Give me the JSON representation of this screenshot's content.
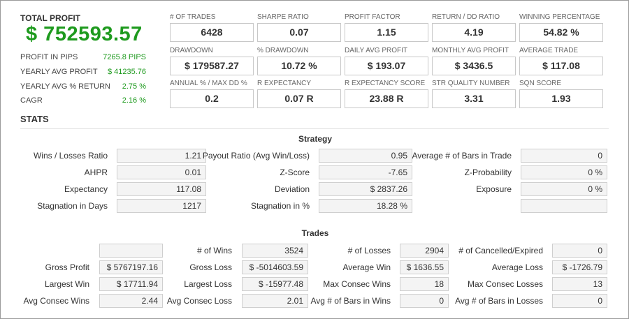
{
  "total_profit": {
    "label": "TOTAL PROFIT",
    "value": "$ 752593.57"
  },
  "left_stats": [
    {
      "label": "PROFIT IN PIPS",
      "value": "7265.8 PIPS"
    },
    {
      "label": "YEARLY AVG PROFIT",
      "value": "$ 41235.76"
    },
    {
      "label": "YEARLY AVG % RETURN",
      "value": "2.75 %"
    },
    {
      "label": "CAGR",
      "value": "2.16 %"
    }
  ],
  "metrics": [
    {
      "label": "# OF TRADES",
      "value": "6428"
    },
    {
      "label": "SHARPE RATIO",
      "value": "0.07"
    },
    {
      "label": "PROFIT FACTOR",
      "value": "1.15"
    },
    {
      "label": "RETURN / DD RATIO",
      "value": "4.19"
    },
    {
      "label": "WINNING PERCENTAGE",
      "value": "54.82 %"
    },
    {
      "label": "DRAWDOWN",
      "value": "$ 179587.27"
    },
    {
      "label": "% DRAWDOWN",
      "value": "10.72 %"
    },
    {
      "label": "DAILY AVG PROFIT",
      "value": "$ 193.07"
    },
    {
      "label": "MONTHLY AVG PROFIT",
      "value": "$ 3436.5"
    },
    {
      "label": "AVERAGE TRADE",
      "value": "$ 117.08"
    },
    {
      "label": "ANNUAL % / MAX DD %",
      "value": "0.2"
    },
    {
      "label": "R EXPECTANCY",
      "value": "0.07 R"
    },
    {
      "label": "R EXPECTANCY SCORE",
      "value": "23.88 R"
    },
    {
      "label": "STR QUALITY NUMBER",
      "value": "3.31"
    },
    {
      "label": "SQN SCORE",
      "value": "1.93"
    }
  ],
  "stats_title": "STATS",
  "strategy": {
    "title": "Strategy",
    "rows": [
      [
        {
          "label": "Wins / Losses Ratio",
          "value": "1.21"
        },
        {
          "label": "Payout Ratio (Avg Win/Loss)",
          "value": "0.95"
        },
        {
          "label": "Average # of Bars in Trade",
          "value": "0"
        }
      ],
      [
        {
          "label": "AHPR",
          "value": "0.01"
        },
        {
          "label": "Z-Score",
          "value": "-7.65"
        },
        {
          "label": "Z-Probability",
          "value": "0 %"
        }
      ],
      [
        {
          "label": "Expectancy",
          "value": "117.08"
        },
        {
          "label": "Deviation",
          "value": "$ 2837.26"
        },
        {
          "label": "Exposure",
          "value": "0 %"
        }
      ],
      [
        {
          "label": "Stagnation in Days",
          "value": "1217"
        },
        {
          "label": "Stagnation in %",
          "value": "18.28 %"
        },
        {
          "label": "",
          "value": ""
        }
      ]
    ]
  },
  "trades": {
    "title": "Trades",
    "rows": [
      [
        {
          "label": "",
          "value": ""
        },
        {
          "label": "# of Wins",
          "value": "3524"
        },
        {
          "label": "# of Losses",
          "value": "2904"
        },
        {
          "label": "# of Cancelled/Expired",
          "value": "0"
        }
      ],
      [
        {
          "label": "Gross Profit",
          "value": "$ 5767197.16"
        },
        {
          "label": "Gross Loss",
          "value": "$ -5014603.59"
        },
        {
          "label": "Average Win",
          "value": "$ 1636.55"
        },
        {
          "label": "Average Loss",
          "value": "$ -1726.79"
        }
      ],
      [
        {
          "label": "Largest Win",
          "value": "$ 17711.94"
        },
        {
          "label": "Largest Loss",
          "value": "$ -15977.48"
        },
        {
          "label": "Max Consec Wins",
          "value": "18"
        },
        {
          "label": "Max Consec Losses",
          "value": "13"
        }
      ],
      [
        {
          "label": "Avg Consec Wins",
          "value": "2.44"
        },
        {
          "label": "Avg Consec Loss",
          "value": "2.01"
        },
        {
          "label": "Avg # of Bars in Wins",
          "value": "0"
        },
        {
          "label": "Avg # of Bars in Losses",
          "value": "0"
        }
      ]
    ]
  }
}
